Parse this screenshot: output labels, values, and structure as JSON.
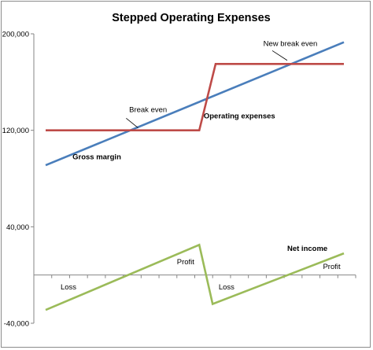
{
  "chart_data": {
    "type": "line",
    "title": "Stepped Operating Expenses",
    "xlabel": "",
    "ylabel": "",
    "ylim": [
      -40000,
      200000
    ],
    "xlim": [
      0,
      100
    ],
    "y_ticks": [
      {
        "value": 200000,
        "label": "200,000"
      },
      {
        "value": 120000,
        "label": "120,000"
      },
      {
        "value": 40000,
        "label": "40,000"
      },
      {
        "value": -40000,
        "label": "-40,000"
      }
    ],
    "series": [
      {
        "name": "Gross margin",
        "color": "#4a7ebb",
        "x": [
          0,
          100
        ],
        "y": [
          91000,
          193000
        ]
      },
      {
        "name": "Operating expenses",
        "color": "#be4b48",
        "x": [
          0,
          51.5,
          57,
          100
        ],
        "y": [
          120000,
          120000,
          175000,
          175000
        ]
      },
      {
        "name": "Net income",
        "color": "#9bbb59",
        "x": [
          0,
          51.5,
          56,
          100
        ],
        "y": [
          -29000,
          25000,
          -24000,
          18000
        ]
      }
    ],
    "annotations": [
      {
        "text": "Break even",
        "x": 28,
        "y": 135000,
        "style": "normal"
      },
      {
        "text": "New break even",
        "x": 73,
        "y": 190000,
        "style": "normal"
      },
      {
        "text": "Operating expenses",
        "x": 53,
        "y": 130000,
        "style": "bold"
      },
      {
        "text": "Gross margin",
        "x": 9,
        "y": 96000,
        "style": "bold"
      },
      {
        "text": "Net income",
        "x": 81,
        "y": 20000,
        "style": "bold"
      },
      {
        "text": "Loss",
        "x": 5,
        "y": -12000,
        "style": "normal"
      },
      {
        "text": "Profit",
        "x": 44,
        "y": 9000,
        "style": "normal"
      },
      {
        "text": "Loss",
        "x": 58,
        "y": -12000,
        "style": "normal"
      },
      {
        "text": "Profit",
        "x": 93,
        "y": 5000,
        "style": "normal"
      }
    ],
    "leader_lines": [
      {
        "x1": 27,
        "y1": 130000,
        "x2": 31,
        "y2": 122000
      },
      {
        "x1": 76,
        "y1": 186000,
        "x2": 81,
        "y2": 178000
      }
    ],
    "grid": false,
    "legend": "none"
  }
}
